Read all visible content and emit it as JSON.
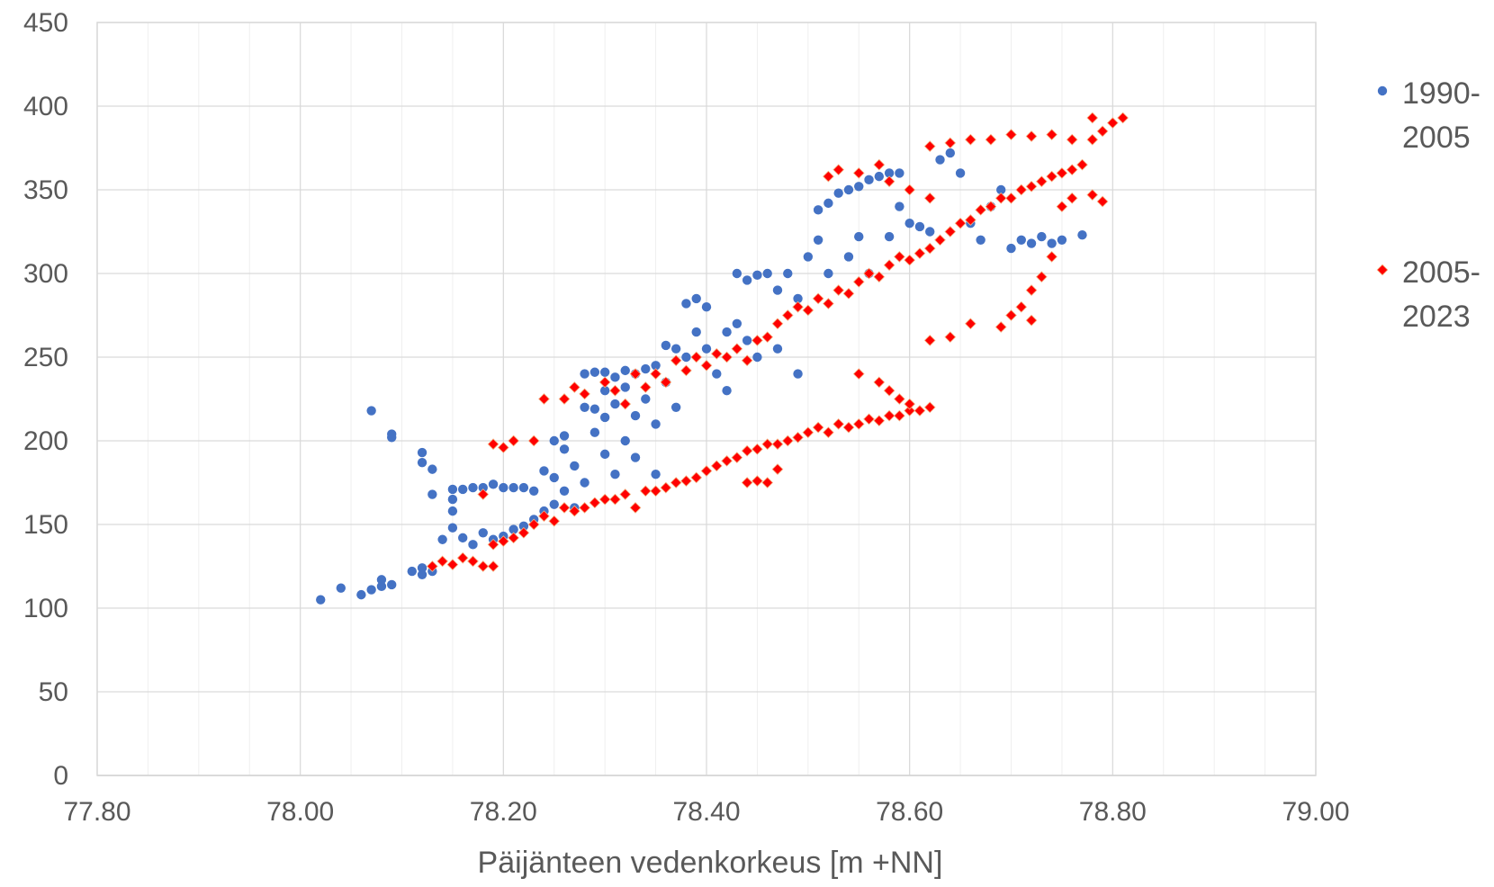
{
  "chart_data": {
    "type": "scatter",
    "title": "",
    "xlabel": "Päijänteen vedenkorkeus [m +NN]",
    "ylabel": "",
    "xlim": [
      77.8,
      79.0
    ],
    "ylim": [
      0,
      450
    ],
    "x_ticks": [
      "77.80",
      "78.00",
      "78.20",
      "78.40",
      "78.60",
      "78.80",
      "79.00"
    ],
    "x_tick_values": [
      77.8,
      78.0,
      78.2,
      78.4,
      78.6,
      78.8,
      79.0
    ],
    "y_ticks": [
      "0",
      "50",
      "100",
      "150",
      "200",
      "250",
      "300",
      "350",
      "400",
      "450"
    ],
    "y_tick_values": [
      0,
      50,
      100,
      150,
      200,
      250,
      300,
      350,
      400,
      450
    ],
    "grid": true,
    "legend_position": "right",
    "series": [
      {
        "name": "1990-2005",
        "legend_lines": [
          "1990-",
          "2005"
        ],
        "color": "#4472C4",
        "marker": "circle",
        "points": [
          [
            78.02,
            105
          ],
          [
            78.04,
            112
          ],
          [
            78.06,
            108
          ],
          [
            78.07,
            111
          ],
          [
            78.08,
            113
          ],
          [
            78.08,
            117
          ],
          [
            78.09,
            114
          ],
          [
            78.07,
            218
          ],
          [
            78.09,
            202
          ],
          [
            78.09,
            204
          ],
          [
            78.11,
            122
          ],
          [
            78.12,
            120
          ],
          [
            78.12,
            124
          ],
          [
            78.13,
            122
          ],
          [
            78.12,
            187
          ],
          [
            78.12,
            193
          ],
          [
            78.13,
            183
          ],
          [
            78.13,
            168
          ],
          [
            78.14,
            141
          ],
          [
            78.15,
            158
          ],
          [
            78.15,
            148
          ],
          [
            78.15,
            165
          ],
          [
            78.15,
            171
          ],
          [
            78.16,
            171
          ],
          [
            78.16,
            142
          ],
          [
            78.17,
            172
          ],
          [
            78.17,
            138
          ],
          [
            78.18,
            172
          ],
          [
            78.18,
            145
          ],
          [
            78.19,
            141
          ],
          [
            78.19,
            174
          ],
          [
            78.2,
            143
          ],
          [
            78.2,
            172
          ],
          [
            78.21,
            147
          ],
          [
            78.21,
            172
          ],
          [
            78.22,
            149
          ],
          [
            78.22,
            172
          ],
          [
            78.23,
            170
          ],
          [
            78.23,
            153
          ],
          [
            78.24,
            158
          ],
          [
            78.24,
            182
          ],
          [
            78.25,
            178
          ],
          [
            78.25,
            200
          ],
          [
            78.25,
            162
          ],
          [
            78.26,
            195
          ],
          [
            78.26,
            203
          ],
          [
            78.26,
            170
          ],
          [
            78.27,
            185
          ],
          [
            78.27,
            160
          ],
          [
            78.28,
            220
          ],
          [
            78.28,
            240
          ],
          [
            78.28,
            175
          ],
          [
            78.29,
            241
          ],
          [
            78.29,
            219
          ],
          [
            78.29,
            205
          ],
          [
            78.3,
            241
          ],
          [
            78.3,
            230
          ],
          [
            78.3,
            214
          ],
          [
            78.3,
            192
          ],
          [
            78.31,
            238
          ],
          [
            78.31,
            222
          ],
          [
            78.31,
            180
          ],
          [
            78.32,
            242
          ],
          [
            78.32,
            232
          ],
          [
            78.32,
            200
          ],
          [
            78.33,
            240
          ],
          [
            78.33,
            215
          ],
          [
            78.33,
            190
          ],
          [
            78.34,
            243
          ],
          [
            78.34,
            225
          ],
          [
            78.35,
            245
          ],
          [
            78.35,
            210
          ],
          [
            78.35,
            180
          ],
          [
            78.36,
            257
          ],
          [
            78.36,
            235
          ],
          [
            78.37,
            255
          ],
          [
            78.37,
            220
          ],
          [
            78.38,
            282
          ],
          [
            78.38,
            250
          ],
          [
            78.39,
            285
          ],
          [
            78.39,
            265
          ],
          [
            78.4,
            280
          ],
          [
            78.4,
            255
          ],
          [
            78.41,
            240
          ],
          [
            78.42,
            265
          ],
          [
            78.42,
            230
          ],
          [
            78.43,
            300
          ],
          [
            78.43,
            270
          ],
          [
            78.44,
            296
          ],
          [
            78.44,
            260
          ],
          [
            78.45,
            299
          ],
          [
            78.45,
            250
          ],
          [
            78.46,
            300
          ],
          [
            78.47,
            290
          ],
          [
            78.47,
            255
          ],
          [
            78.48,
            300
          ],
          [
            78.49,
            285
          ],
          [
            78.49,
            240
          ],
          [
            78.5,
            310
          ],
          [
            78.51,
            320
          ],
          [
            78.51,
            338
          ],
          [
            78.52,
            342
          ],
          [
            78.52,
            300
          ],
          [
            78.53,
            348
          ],
          [
            78.54,
            350
          ],
          [
            78.54,
            310
          ],
          [
            78.55,
            352
          ],
          [
            78.55,
            322
          ],
          [
            78.56,
            356
          ],
          [
            78.56,
            300
          ],
          [
            78.57,
            358
          ],
          [
            78.58,
            360
          ],
          [
            78.58,
            322
          ],
          [
            78.59,
            360
          ],
          [
            78.59,
            340
          ],
          [
            78.6,
            330
          ],
          [
            78.61,
            328
          ],
          [
            78.62,
            325
          ],
          [
            78.63,
            368
          ],
          [
            78.64,
            372
          ],
          [
            78.65,
            360
          ],
          [
            78.66,
            330
          ],
          [
            78.67,
            320
          ],
          [
            78.68,
            340
          ],
          [
            78.69,
            350
          ],
          [
            78.7,
            315
          ],
          [
            78.71,
            320
          ],
          [
            78.72,
            318
          ],
          [
            78.73,
            322
          ],
          [
            78.74,
            318
          ],
          [
            78.75,
            320
          ],
          [
            78.77,
            323
          ]
        ]
      },
      {
        "name": "2005-2023",
        "legend_lines": [
          "2005-",
          "2023"
        ],
        "color": "#FF0000",
        "marker": "diamond",
        "points": [
          [
            78.13,
            125
          ],
          [
            78.14,
            128
          ],
          [
            78.15,
            126
          ],
          [
            78.16,
            130
          ],
          [
            78.17,
            128
          ],
          [
            78.18,
            125
          ],
          [
            78.19,
            138
          ],
          [
            78.19,
            125
          ],
          [
            78.2,
            140
          ],
          [
            78.21,
            142
          ],
          [
            78.22,
            145
          ],
          [
            78.23,
            150
          ],
          [
            78.24,
            155
          ],
          [
            78.25,
            152
          ],
          [
            78.26,
            160
          ],
          [
            78.27,
            158
          ],
          [
            78.28,
            160
          ],
          [
            78.29,
            163
          ],
          [
            78.3,
            165
          ],
          [
            78.31,
            165
          ],
          [
            78.32,
            168
          ],
          [
            78.33,
            160
          ],
          [
            78.34,
            170
          ],
          [
            78.35,
            170
          ],
          [
            78.36,
            172
          ],
          [
            78.37,
            175
          ],
          [
            78.38,
            176
          ],
          [
            78.39,
            178
          ],
          [
            78.4,
            182
          ],
          [
            78.41,
            185
          ],
          [
            78.42,
            188
          ],
          [
            78.43,
            190
          ],
          [
            78.44,
            194
          ],
          [
            78.45,
            195
          ],
          [
            78.46,
            198
          ],
          [
            78.47,
            198
          ],
          [
            78.48,
            200
          ],
          [
            78.49,
            202
          ],
          [
            78.5,
            205
          ],
          [
            78.51,
            208
          ],
          [
            78.52,
            205
          ],
          [
            78.53,
            210
          ],
          [
            78.54,
            208
          ],
          [
            78.55,
            210
          ],
          [
            78.56,
            213
          ],
          [
            78.57,
            212
          ],
          [
            78.58,
            215
          ],
          [
            78.59,
            215
          ],
          [
            78.6,
            218
          ],
          [
            78.61,
            218
          ],
          [
            78.62,
            220
          ],
          [
            78.18,
            168
          ],
          [
            78.19,
            198
          ],
          [
            78.2,
            196
          ],
          [
            78.21,
            200
          ],
          [
            78.23,
            200
          ],
          [
            78.24,
            225
          ],
          [
            78.26,
            225
          ],
          [
            78.27,
            232
          ],
          [
            78.28,
            228
          ],
          [
            78.3,
            235
          ],
          [
            78.31,
            230
          ],
          [
            78.32,
            222
          ],
          [
            78.33,
            240
          ],
          [
            78.34,
            232
          ],
          [
            78.35,
            240
          ],
          [
            78.36,
            235
          ],
          [
            78.37,
            248
          ],
          [
            78.38,
            242
          ],
          [
            78.39,
            250
          ],
          [
            78.4,
            245
          ],
          [
            78.41,
            252
          ],
          [
            78.42,
            250
          ],
          [
            78.43,
            255
          ],
          [
            78.44,
            248
          ],
          [
            78.45,
            260
          ],
          [
            78.46,
            262
          ],
          [
            78.47,
            270
          ],
          [
            78.48,
            275
          ],
          [
            78.49,
            280
          ],
          [
            78.5,
            278
          ],
          [
            78.51,
            285
          ],
          [
            78.52,
            282
          ],
          [
            78.53,
            290
          ],
          [
            78.54,
            288
          ],
          [
            78.55,
            295
          ],
          [
            78.56,
            300
          ],
          [
            78.57,
            298
          ],
          [
            78.58,
            305
          ],
          [
            78.59,
            310
          ],
          [
            78.6,
            308
          ],
          [
            78.61,
            312
          ],
          [
            78.62,
            315
          ],
          [
            78.63,
            320
          ],
          [
            78.64,
            325
          ],
          [
            78.65,
            330
          ],
          [
            78.66,
            332
          ],
          [
            78.67,
            338
          ],
          [
            78.68,
            340
          ],
          [
            78.69,
            345
          ],
          [
            78.7,
            345
          ],
          [
            78.71,
            350
          ],
          [
            78.72,
            352
          ],
          [
            78.73,
            355
          ],
          [
            78.74,
            358
          ],
          [
            78.75,
            360
          ],
          [
            78.76,
            362
          ],
          [
            78.77,
            365
          ],
          [
            78.78,
            380
          ],
          [
            78.79,
            385
          ],
          [
            78.8,
            390
          ],
          [
            78.81,
            393
          ],
          [
            78.78,
            393
          ],
          [
            78.76,
            380
          ],
          [
            78.74,
            383
          ],
          [
            78.72,
            382
          ],
          [
            78.7,
            383
          ],
          [
            78.68,
            380
          ],
          [
            78.66,
            380
          ],
          [
            78.64,
            378
          ],
          [
            78.62,
            376
          ],
          [
            78.52,
            358
          ],
          [
            78.53,
            362
          ],
          [
            78.55,
            360
          ],
          [
            78.57,
            365
          ],
          [
            78.58,
            355
          ],
          [
            78.6,
            350
          ],
          [
            78.62,
            345
          ],
          [
            78.44,
            175
          ],
          [
            78.45,
            176
          ],
          [
            78.46,
            175
          ],
          [
            78.47,
            183
          ],
          [
            78.55,
            240
          ],
          [
            78.57,
            235
          ],
          [
            78.58,
            230
          ],
          [
            78.59,
            225
          ],
          [
            78.6,
            222
          ],
          [
            78.62,
            260
          ],
          [
            78.64,
            262
          ],
          [
            78.66,
            270
          ],
          [
            78.69,
            268
          ],
          [
            78.7,
            275
          ],
          [
            78.71,
            280
          ],
          [
            78.72,
            272
          ],
          [
            78.72,
            290
          ],
          [
            78.73,
            298
          ],
          [
            78.74,
            310
          ],
          [
            78.75,
            340
          ],
          [
            78.76,
            345
          ],
          [
            78.78,
            347
          ],
          [
            78.79,
            343
          ]
        ]
      }
    ]
  }
}
